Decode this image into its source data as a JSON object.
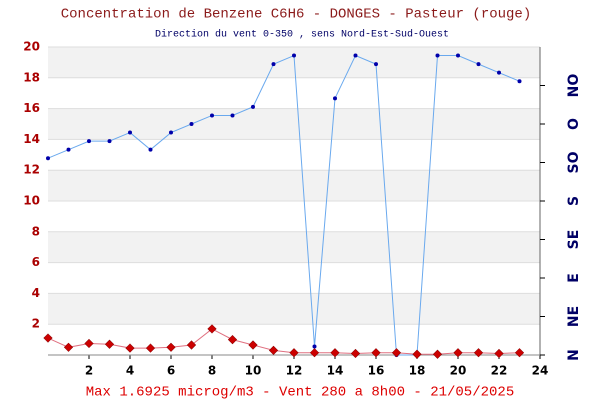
{
  "chart_data": {
    "type": "line",
    "title": "Concentration de Benzene C6H6  -   DONGES - Pasteur (rouge)",
    "subtitle": "Direction du vent 0-350 , sens Nord-Est-Sud-Ouest",
    "footer": "Max 1.6925 microg/m3 - Vent 280  a 8h00 - 21/05/2025",
    "x": [
      0,
      1,
      2,
      3,
      4,
      5,
      6,
      7,
      8,
      9,
      10,
      11,
      12,
      13,
      14,
      15,
      16,
      17,
      18,
      19,
      20,
      21,
      22,
      23
    ],
    "xlim": [
      0,
      24
    ],
    "xticks": [
      2,
      4,
      6,
      8,
      10,
      12,
      14,
      16,
      18,
      20,
      22,
      24
    ],
    "ylim": [
      0,
      20
    ],
    "yticks": [
      2,
      4,
      6,
      8,
      10,
      12,
      14,
      16,
      18,
      20
    ],
    "y2lim": [
      0,
      360
    ],
    "y2ticks": [
      {
        "value": 0,
        "label": "N"
      },
      {
        "value": 45,
        "label": "NE"
      },
      {
        "value": 90,
        "label": "E"
      },
      {
        "value": 135,
        "label": "SE"
      },
      {
        "value": 180,
        "label": "S"
      },
      {
        "value": 225,
        "label": "SO"
      },
      {
        "value": 270,
        "label": "O"
      },
      {
        "value": 315,
        "label": "NO"
      }
    ],
    "bands": true,
    "series": [
      {
        "color": "#6aa9ee",
        "marker_color": "#0000aa",
        "axis": "y2",
        "values": [
          230,
          240,
          250,
          250,
          260,
          240,
          260,
          270,
          280,
          280,
          290,
          340,
          350,
          10,
          300,
          350,
          340,
          0,
          0,
          350,
          350,
          340,
          330,
          320
        ]
      },
      {
        "color": "#e07080",
        "marker_color": "#cc0000",
        "axis": "y",
        "values": [
          1.1,
          0.5,
          0.75,
          0.7,
          0.45,
          0.45,
          0.5,
          0.65,
          1.6925,
          1.0,
          0.65,
          0.3,
          0.15,
          0.15,
          0.15,
          0.1,
          0.15,
          0.15,
          0.05,
          0.05,
          0.15,
          0.15,
          0.1,
          0.15
        ]
      }
    ]
  }
}
